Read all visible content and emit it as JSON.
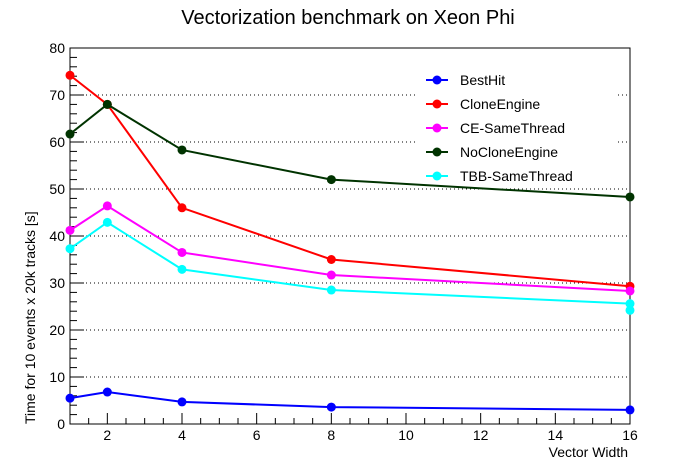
{
  "chart_data": {
    "type": "line",
    "title": "Vectorization benchmark on Xeon Phi",
    "xlabel": "Vector Width",
    "ylabel": "Time for 10 events x 20k tracks [s]",
    "xlim": [
      1,
      16
    ],
    "ylim": [
      0,
      80
    ],
    "x_ticks": [
      2,
      4,
      6,
      8,
      10,
      12,
      14,
      16
    ],
    "y_ticks": [
      0,
      10,
      20,
      30,
      40,
      50,
      60,
      70,
      80
    ],
    "grid": "horizontal-dotted",
    "legend_position": "top-right",
    "series": [
      {
        "name": "BestHit",
        "color": "#0000ff",
        "x": [
          1,
          2,
          4,
          8,
          16
        ],
        "y": [
          5.5,
          6.8,
          4.7,
          3.6,
          3.0
        ]
      },
      {
        "name": "CloneEngine",
        "color": "#ff0000",
        "x": [
          1,
          2,
          4,
          8,
          16
        ],
        "y": [
          74.2,
          68.0,
          46.0,
          35.0,
          29.3
        ]
      },
      {
        "name": "CE-SameThread",
        "color": "#ff00ff",
        "x": [
          1,
          2,
          4,
          8,
          16
        ],
        "y": [
          41.2,
          46.4,
          36.5,
          31.7,
          28.3
        ]
      },
      {
        "name": "NoCloneEngine",
        "color": "#003300",
        "x": [
          1,
          2,
          4,
          8,
          16
        ],
        "y": [
          61.7,
          68.0,
          58.3,
          52.0,
          48.3
        ]
      },
      {
        "name": "TBB-SameThread",
        "color": "#00ffff",
        "x": [
          1,
          2,
          4,
          8,
          16
        ],
        "y": [
          37.3,
          42.9,
          32.9,
          28.5,
          25.6
        ]
      }
    ],
    "extra_points": [
      {
        "series": "TBB-SameThread",
        "x": 16,
        "y": 24.2
      }
    ]
  }
}
